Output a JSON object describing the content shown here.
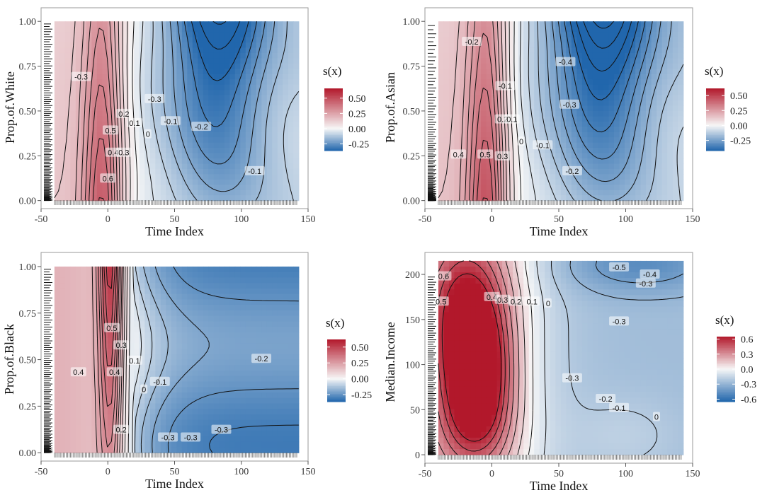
{
  "chart_data": [
    {
      "type": "heatmap",
      "subtype": "contour",
      "xlabel": "Time Index",
      "ylabel": "Prop.of.White",
      "xlim": [
        -50,
        150
      ],
      "ylim": [
        0,
        1
      ],
      "xticks": [
        -50,
        0,
        50,
        100,
        150
      ],
      "yticks": [
        "0.00",
        "0.25",
        "0.50",
        "0.75",
        "1.00"
      ],
      "legend": {
        "title": "s(x)",
        "ticks": [
          "0.50",
          "0.25",
          "0.00",
          "-0.25"
        ],
        "values": [
          0.5,
          0.25,
          0.0,
          -0.25
        ],
        "range": [
          -0.36,
          0.66
        ]
      },
      "contour_labels": [
        "-0.3",
        "0.5",
        "0.4",
        "0.3",
        "0.6",
        "0.2",
        "0.1",
        "0",
        "-0.1",
        "-0.2",
        "-0.3",
        "-0.1"
      ],
      "rug": true,
      "colors": {
        "high": "#c0392b",
        "mid": "#f7f7f7",
        "low": "#2c76b5"
      }
    },
    {
      "type": "heatmap",
      "subtype": "contour",
      "xlabel": "Time Index",
      "ylabel": "Prop.of.Asian",
      "xlim": [
        -50,
        150
      ],
      "ylim": [
        0,
        1
      ],
      "xticks": [
        -50,
        0,
        50,
        100,
        150
      ],
      "yticks": [
        "0.00",
        "0.25",
        "0.50",
        "0.75",
        "1.00"
      ],
      "legend": {
        "title": "s(x)",
        "ticks": [
          "0.50",
          "0.25",
          "0.00",
          "-0.25"
        ],
        "values": [
          0.5,
          0.25,
          0.0,
          -0.25
        ],
        "range": [
          -0.42,
          0.62
        ]
      },
      "contour_labels": [
        "-0.2",
        "0.4",
        "0.5",
        "0.3",
        "-0.1",
        "0.2",
        "0.1",
        "0",
        "-0.1",
        "-0.4",
        "-0.3",
        "-0.2"
      ],
      "rug": true,
      "colors": {
        "high": "#c0392b",
        "mid": "#f7f7f7",
        "low": "#2c76b5"
      }
    },
    {
      "type": "heatmap",
      "subtype": "contour",
      "xlabel": "Time Index",
      "ylabel": "Prop.of.Black",
      "xlim": [
        -50,
        150
      ],
      "ylim": [
        0,
        1
      ],
      "xticks": [
        -50,
        0,
        50,
        100,
        150
      ],
      "yticks": [
        "0.00",
        "0.25",
        "0.50",
        "0.75",
        "1.00"
      ],
      "legend": {
        "title": "s(x)",
        "ticks": [
          "0.50",
          "0.25",
          "0.00",
          "-0.25"
        ],
        "values": [
          0.5,
          0.25,
          0.0,
          -0.25
        ],
        "range": [
          -0.36,
          0.62
        ]
      },
      "contour_labels": [
        "0.4",
        "0.5",
        "0.3",
        "-0.3",
        "0.4",
        "0.2",
        "0.1",
        "0",
        "-0.1",
        "-0.2",
        "-0.3",
        "-0.3"
      ],
      "rug": true,
      "colors": {
        "high": "#c0392b",
        "mid": "#f7f7f7",
        "low": "#2c76b5"
      }
    },
    {
      "type": "heatmap",
      "subtype": "contour",
      "xlabel": "Time Index",
      "ylabel": "Median.Income",
      "xlim": [
        -50,
        150
      ],
      "ylim": [
        0,
        215
      ],
      "xticks": [
        -50,
        0,
        50,
        100,
        150
      ],
      "yticks": [
        "0",
        "50",
        "100",
        "150",
        "200"
      ],
      "legend": {
        "title": "s(x)",
        "ticks": [
          "0.6",
          "0.3",
          "0.0",
          "-0.3",
          "-0.6"
        ],
        "values": [
          0.6,
          0.3,
          0.0,
          -0.3,
          -0.6
        ],
        "range": [
          -0.65,
          0.65
        ]
      },
      "contour_labels": [
        "0.6",
        "0.5",
        "0.4",
        "0.3",
        "0.2",
        "0.1",
        "0",
        "-0.5",
        "-0.4",
        "-0.3",
        "-0.3",
        "-0.3",
        "-0.2",
        "-0.1",
        "0"
      ],
      "rug": true,
      "colors": {
        "high": "#c0392b",
        "mid": "#f7f7f7",
        "low": "#2c76b5"
      }
    }
  ]
}
